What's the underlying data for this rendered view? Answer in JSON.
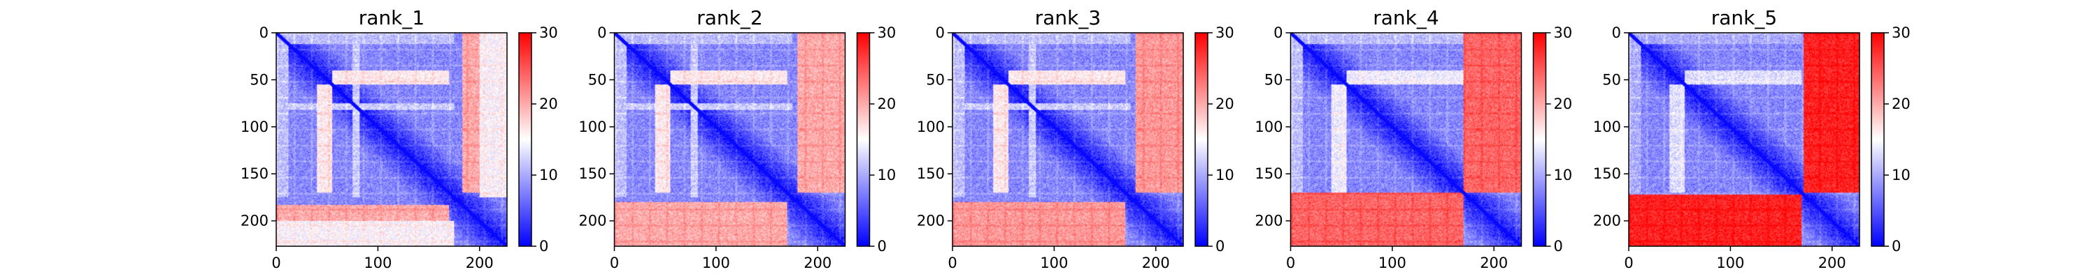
{
  "chart_data": [
    {
      "type": "heatmap",
      "title": "rank_1",
      "xlim": [
        0,
        227
      ],
      "ylim": [
        0,
        227
      ],
      "y_inverted": true,
      "x_ticks": [
        0,
        100,
        200
      ],
      "y_ticks": [
        0,
        50,
        100,
        150,
        200
      ],
      "colorbar": {
        "colormap": "bwr",
        "min": 0,
        "max": 30,
        "ticks": [
          0,
          10,
          20,
          30
        ]
      },
      "pair_error_blocks": [
        {
          "rows": [
            183,
            200
          ],
          "cols": [
            0,
            170
          ],
          "value": 20
        },
        {
          "rows": [
            0,
            170
          ],
          "cols": [
            183,
            200
          ],
          "value": 20
        },
        {
          "rows": [
            200,
            227
          ],
          "cols": [
            0,
            175
          ],
          "value": 15
        },
        {
          "rows": [
            0,
            175
          ],
          "cols": [
            200,
            227
          ],
          "value": 15
        },
        {
          "rows": [
            40,
            55
          ],
          "cols": [
            55,
            170
          ],
          "value": 16
        },
        {
          "rows": [
            55,
            170
          ],
          "cols": [
            40,
            55
          ],
          "value": 16
        },
        {
          "rows": [
            0,
            12
          ],
          "cols": [
            0,
            175
          ],
          "value": 11
        },
        {
          "rows": [
            0,
            175
          ],
          "cols": [
            0,
            12
          ],
          "value": 11
        },
        {
          "rows": [
            75,
            82
          ],
          "cols": [
            0,
            175
          ],
          "value": 12
        },
        {
          "rows": [
            0,
            175
          ],
          "cols": [
            75,
            82
          ],
          "value": 12
        }
      ]
    },
    {
      "type": "heatmap",
      "title": "rank_2",
      "xlim": [
        0,
        227
      ],
      "ylim": [
        0,
        227
      ],
      "y_inverted": true,
      "x_ticks": [
        0,
        100,
        200
      ],
      "y_ticks": [
        0,
        50,
        100,
        150,
        200
      ],
      "colorbar": {
        "colormap": "bwr",
        "min": 0,
        "max": 30,
        "ticks": [
          0,
          10,
          20,
          30
        ]
      },
      "pair_error_blocks": [
        {
          "rows": [
            180,
            227
          ],
          "cols": [
            0,
            170
          ],
          "value": 20
        },
        {
          "rows": [
            0,
            170
          ],
          "cols": [
            180,
            227
          ],
          "value": 20
        },
        {
          "rows": [
            40,
            55
          ],
          "cols": [
            55,
            170
          ],
          "value": 16
        },
        {
          "rows": [
            55,
            170
          ],
          "cols": [
            40,
            55
          ],
          "value": 16
        },
        {
          "rows": [
            0,
            12
          ],
          "cols": [
            0,
            175
          ],
          "value": 11
        },
        {
          "rows": [
            0,
            175
          ],
          "cols": [
            0,
            12
          ],
          "value": 11
        },
        {
          "rows": [
            75,
            82
          ],
          "cols": [
            0,
            175
          ],
          "value": 12
        },
        {
          "rows": [
            0,
            175
          ],
          "cols": [
            75,
            82
          ],
          "value": 12
        }
      ]
    },
    {
      "type": "heatmap",
      "title": "rank_3",
      "xlim": [
        0,
        227
      ],
      "ylim": [
        0,
        227
      ],
      "y_inverted": true,
      "x_ticks": [
        0,
        100,
        200
      ],
      "y_ticks": [
        0,
        50,
        100,
        150,
        200
      ],
      "colorbar": {
        "colormap": "bwr",
        "min": 0,
        "max": 30,
        "ticks": [
          0,
          10,
          20,
          30
        ]
      },
      "pair_error_blocks": [
        {
          "rows": [
            180,
            227
          ],
          "cols": [
            0,
            170
          ],
          "value": 21
        },
        {
          "rows": [
            0,
            170
          ],
          "cols": [
            180,
            227
          ],
          "value": 21
        },
        {
          "rows": [
            40,
            55
          ],
          "cols": [
            55,
            170
          ],
          "value": 16
        },
        {
          "rows": [
            55,
            170
          ],
          "cols": [
            40,
            55
          ],
          "value": 16
        },
        {
          "rows": [
            0,
            12
          ],
          "cols": [
            0,
            175
          ],
          "value": 11
        },
        {
          "rows": [
            0,
            175
          ],
          "cols": [
            0,
            12
          ],
          "value": 11
        },
        {
          "rows": [
            75,
            82
          ],
          "cols": [
            0,
            175
          ],
          "value": 12
        },
        {
          "rows": [
            0,
            175
          ],
          "cols": [
            75,
            82
          ],
          "value": 12
        }
      ]
    },
    {
      "type": "heatmap",
      "title": "rank_4",
      "xlim": [
        0,
        227
      ],
      "ylim": [
        0,
        227
      ],
      "y_inverted": true,
      "x_ticks": [
        0,
        100,
        200
      ],
      "y_ticks": [
        0,
        50,
        100,
        150,
        200
      ],
      "colorbar": {
        "colormap": "bwr",
        "min": 0,
        "max": 30,
        "ticks": [
          0,
          10,
          20,
          30
        ]
      },
      "pair_error_blocks": [
        {
          "rows": [
            170,
            227
          ],
          "cols": [
            0,
            170
          ],
          "value": 24
        },
        {
          "rows": [
            0,
            170
          ],
          "cols": [
            170,
            227
          ],
          "value": 24
        },
        {
          "rows": [
            40,
            55
          ],
          "cols": [
            55,
            170
          ],
          "value": 14
        },
        {
          "rows": [
            55,
            170
          ],
          "cols": [
            40,
            55
          ],
          "value": 14
        },
        {
          "rows": [
            0,
            12
          ],
          "cols": [
            0,
            170
          ],
          "value": 11
        },
        {
          "rows": [
            0,
            170
          ],
          "cols": [
            0,
            12
          ],
          "value": 11
        }
      ]
    },
    {
      "type": "heatmap",
      "title": "rank_5",
      "xlim": [
        0,
        227
      ],
      "ylim": [
        0,
        227
      ],
      "y_inverted": true,
      "x_ticks": [
        0,
        100,
        200
      ],
      "y_ticks": [
        0,
        50,
        100,
        150,
        200
      ],
      "colorbar": {
        "colormap": "bwr",
        "min": 0,
        "max": 30,
        "ticks": [
          0,
          10,
          20,
          30
        ]
      },
      "pair_error_blocks": [
        {
          "rows": [
            172,
            227
          ],
          "cols": [
            0,
            170
          ],
          "value": 28
        },
        {
          "rows": [
            0,
            170
          ],
          "cols": [
            172,
            227
          ],
          "value": 28
        },
        {
          "rows": [
            40,
            55
          ],
          "cols": [
            55,
            170
          ],
          "value": 13
        },
        {
          "rows": [
            55,
            170
          ],
          "cols": [
            40,
            55
          ],
          "value": 13
        },
        {
          "rows": [
            0,
            12
          ],
          "cols": [
            0,
            170
          ],
          "value": 10
        },
        {
          "rows": [
            0,
            170
          ],
          "cols": [
            0,
            12
          ],
          "value": 10
        }
      ]
    }
  ]
}
